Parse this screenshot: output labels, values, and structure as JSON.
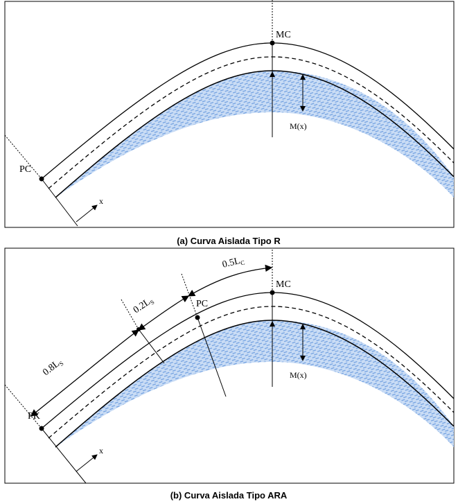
{
  "panel_a": {
    "caption": "(a) Curva Aislada Tipo R",
    "labels": {
      "pc": "PC",
      "mc": "MC",
      "mx": "M(x)",
      "x": "x"
    }
  },
  "panel_b": {
    "caption": "(b) Curva Aislada Tipo ARA",
    "labels": {
      "pk": "PK",
      "pc": "PC",
      "mc": "MC",
      "mx": "M(x)",
      "x": "x"
    },
    "lengths": {
      "lc05": {
        "main": "0.5L",
        "sub": "C"
      },
      "ls02": {
        "main": "0.2L",
        "sub": "S"
      },
      "ls08": {
        "main": "0.8L",
        "sub": "S"
      }
    }
  }
}
